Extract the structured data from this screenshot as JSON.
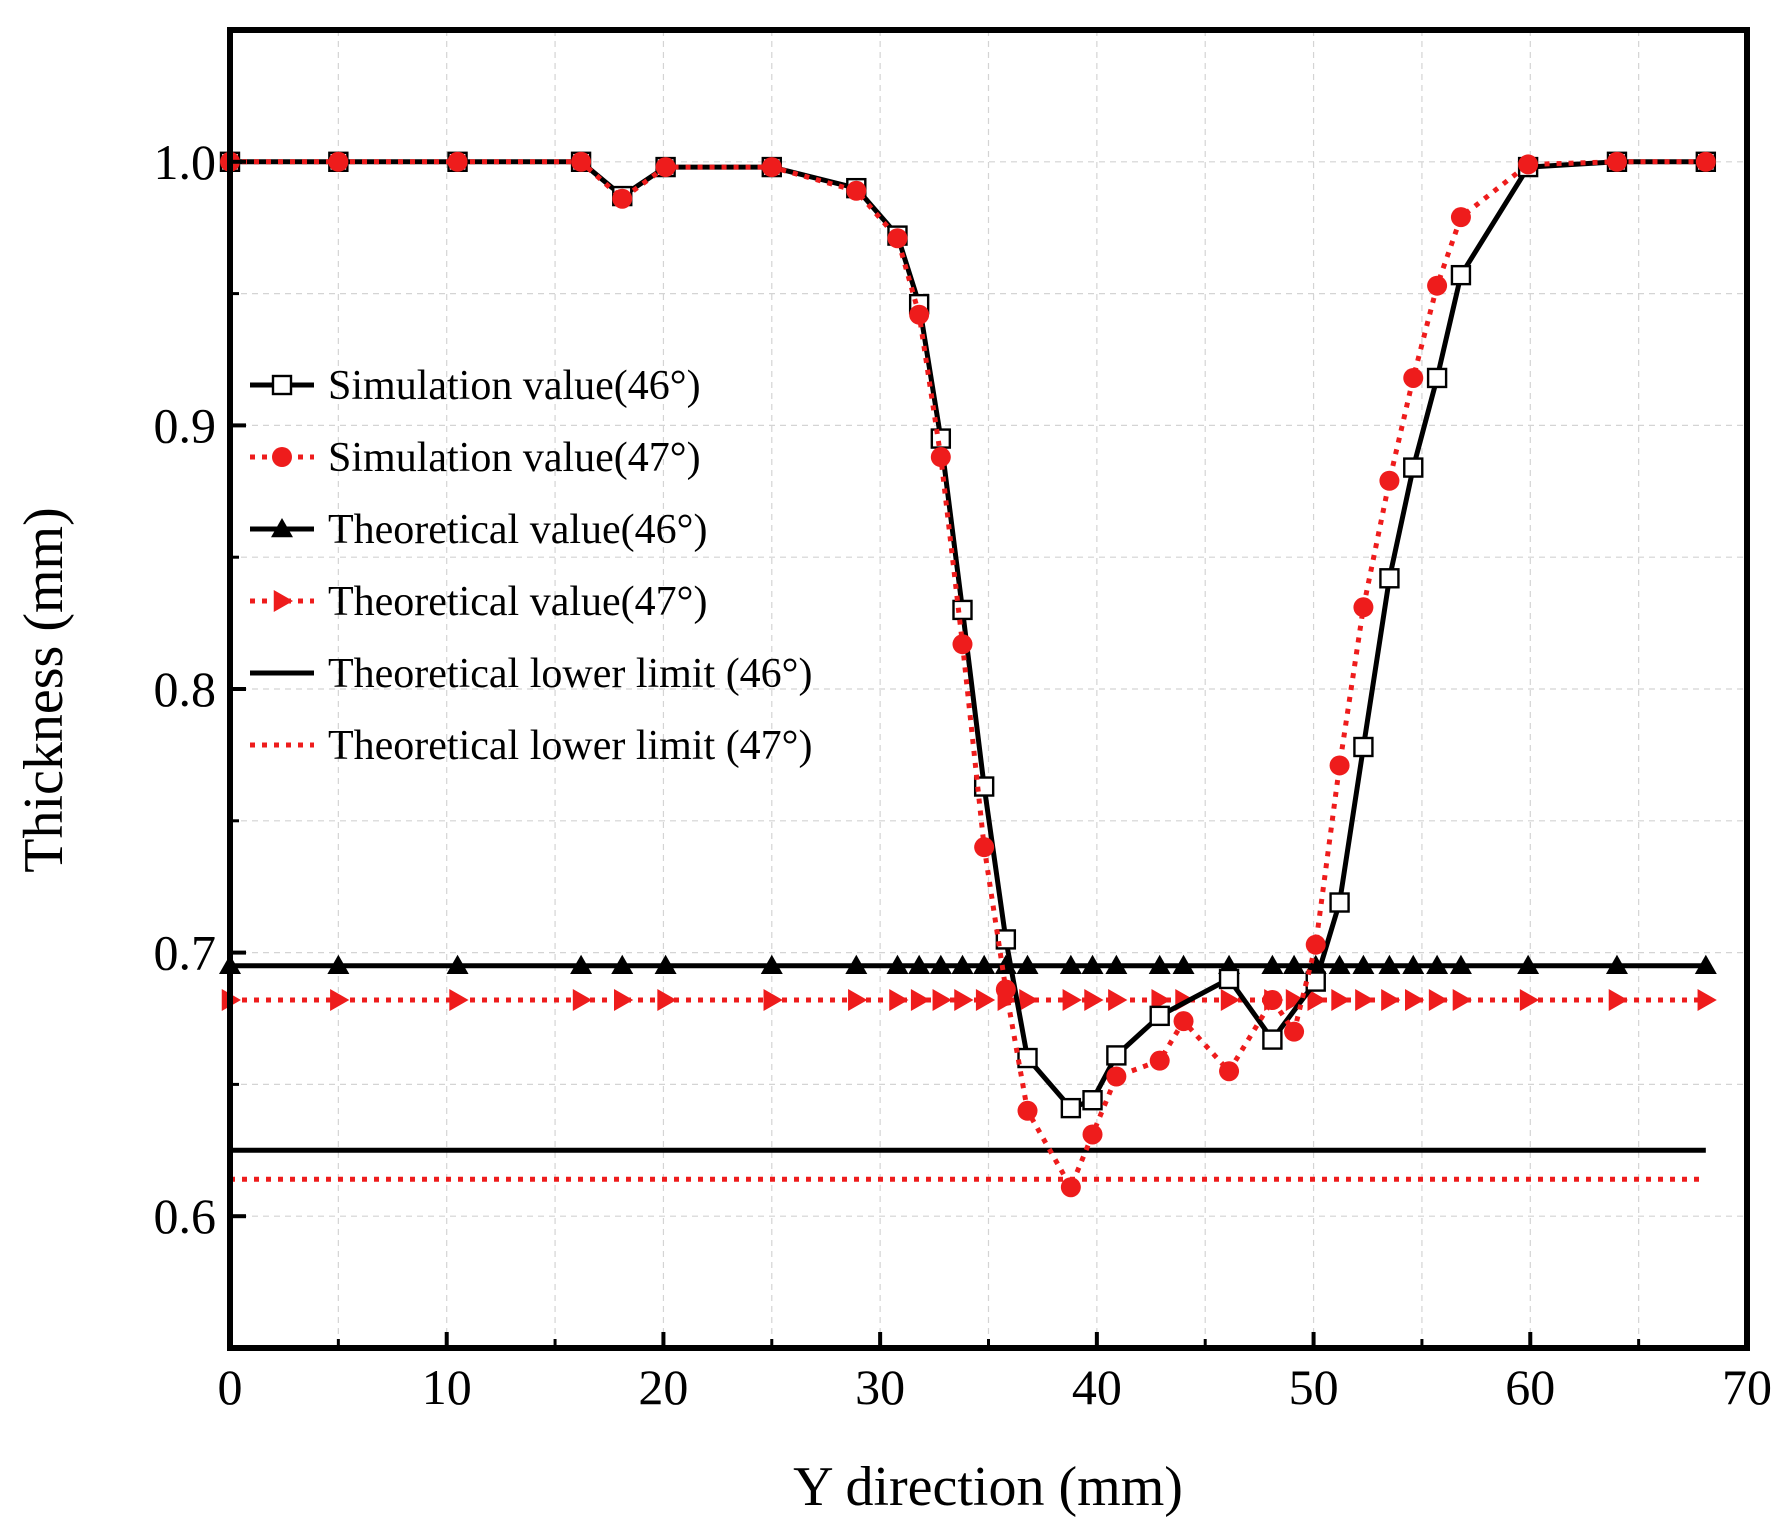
{
  "chart_data": {
    "type": "line",
    "xlabel": "Y direction (mm)",
    "ylabel": "Thickness (mm)",
    "xlim": [
      0,
      70
    ],
    "ylim": [
      0.55,
      1.05
    ],
    "xticks": [
      0,
      10,
      20,
      30,
      40,
      50,
      60,
      70
    ],
    "xtick_labels": [
      "0",
      "10",
      "20",
      "30",
      "40",
      "50",
      "60",
      "70"
    ],
    "yticks": [
      0.6,
      0.7,
      0.8,
      0.9,
      1.0
    ],
    "ytick_labels": [
      "0.6",
      "0.7",
      "0.8",
      "0.9",
      "1.0"
    ],
    "grid": true,
    "legend_position": "middle-left",
    "colors": {
      "black": "#000000",
      "red": "#ee1c1c"
    },
    "series": [
      {
        "name": "Simulation value(46°)",
        "color": "#000000",
        "line": "solid",
        "marker": "open-square",
        "x": [
          0,
          5,
          10.5,
          16.2,
          18.1,
          20.1,
          25,
          28.9,
          30.8,
          31.8,
          32.8,
          33.8,
          34.8,
          35.8,
          36.8,
          38.8,
          39.8,
          40.9,
          42.9,
          46.1,
          48.1,
          50.1,
          51.2,
          52.3,
          53.5,
          54.6,
          55.7,
          56.8,
          59.9,
          64,
          68.1
        ],
        "y": [
          1.0,
          1.0,
          1.0,
          1.0,
          0.987,
          0.998,
          0.998,
          0.99,
          0.972,
          0.946,
          0.895,
          0.83,
          0.763,
          0.705,
          0.66,
          0.641,
          0.644,
          0.661,
          0.676,
          0.69,
          0.667,
          0.689,
          0.719,
          0.778,
          0.842,
          0.884,
          0.918,
          0.957,
          0.998,
          1.0,
          1.0
        ]
      },
      {
        "name": "Simulation value(47°)",
        "color": "#ee1c1c",
        "line": "dotted",
        "marker": "filled-circle",
        "x": [
          0,
          5,
          10.5,
          16.2,
          18.1,
          20.1,
          25,
          28.9,
          30.8,
          31.8,
          32.8,
          33.8,
          34.8,
          35.8,
          36.8,
          38.8,
          39.8,
          40.9,
          42.9,
          44,
          46.1,
          48.1,
          49.1,
          50.1,
          51.2,
          52.3,
          53.5,
          54.6,
          55.7,
          56.8,
          59.9,
          64,
          68.1
        ],
        "y": [
          1.0,
          1.0,
          1.0,
          1.0,
          0.986,
          0.998,
          0.998,
          0.989,
          0.971,
          0.942,
          0.888,
          0.817,
          0.74,
          0.686,
          0.64,
          0.611,
          0.631,
          0.653,
          0.659,
          0.674,
          0.655,
          0.682,
          0.67,
          0.703,
          0.771,
          0.831,
          0.879,
          0.918,
          0.953,
          0.979,
          0.999,
          1.0,
          1.0
        ]
      },
      {
        "name": "Theoretical value(46°)",
        "color": "#000000",
        "line": "solid",
        "marker": "filled-triangle-up",
        "x": [
          0,
          5,
          10.5,
          16.2,
          18.1,
          20.1,
          25,
          28.9,
          30.8,
          31.8,
          32.8,
          33.8,
          34.8,
          35.8,
          36.8,
          38.8,
          39.8,
          40.9,
          42.9,
          44,
          46.1,
          48.1,
          49.1,
          50.1,
          51.2,
          52.3,
          53.5,
          54.6,
          55.7,
          56.8,
          59.9,
          64,
          68.1
        ],
        "y": [
          0.695,
          0.695,
          0.695,
          0.695,
          0.695,
          0.695,
          0.695,
          0.695,
          0.695,
          0.695,
          0.695,
          0.695,
          0.695,
          0.695,
          0.695,
          0.695,
          0.695,
          0.695,
          0.695,
          0.695,
          0.695,
          0.695,
          0.695,
          0.695,
          0.695,
          0.695,
          0.695,
          0.695,
          0.695,
          0.695,
          0.695,
          0.695,
          0.695
        ]
      },
      {
        "name": "Theoretical value(47°)",
        "color": "#ee1c1c",
        "line": "dotted",
        "marker": "filled-triangle-right",
        "x": [
          0,
          5,
          10.5,
          16.2,
          18.1,
          20.1,
          25,
          28.9,
          30.8,
          31.8,
          32.8,
          33.8,
          34.8,
          35.8,
          36.8,
          38.8,
          39.8,
          40.9,
          42.9,
          44,
          46.1,
          48.1,
          49.1,
          50.1,
          51.2,
          52.3,
          53.5,
          54.6,
          55.7,
          56.8,
          59.9,
          64,
          68.1
        ],
        "y": [
          0.682,
          0.682,
          0.682,
          0.682,
          0.682,
          0.682,
          0.682,
          0.682,
          0.682,
          0.682,
          0.682,
          0.682,
          0.682,
          0.682,
          0.682,
          0.682,
          0.682,
          0.682,
          0.682,
          0.682,
          0.682,
          0.682,
          0.682,
          0.682,
          0.682,
          0.682,
          0.682,
          0.682,
          0.682,
          0.682,
          0.682,
          0.682,
          0.682
        ]
      },
      {
        "name": "Theoretical lower limit (46°)",
        "color": "#000000",
        "line": "solid",
        "marker": "none",
        "x": [
          0,
          68.1
        ],
        "y": [
          0.625,
          0.625
        ]
      },
      {
        "name": "Theoretical lower limit (47°)",
        "color": "#ee1c1c",
        "line": "dotted",
        "marker": "none",
        "x": [
          0,
          68.1
        ],
        "y": [
          0.614,
          0.614
        ]
      }
    ]
  }
}
